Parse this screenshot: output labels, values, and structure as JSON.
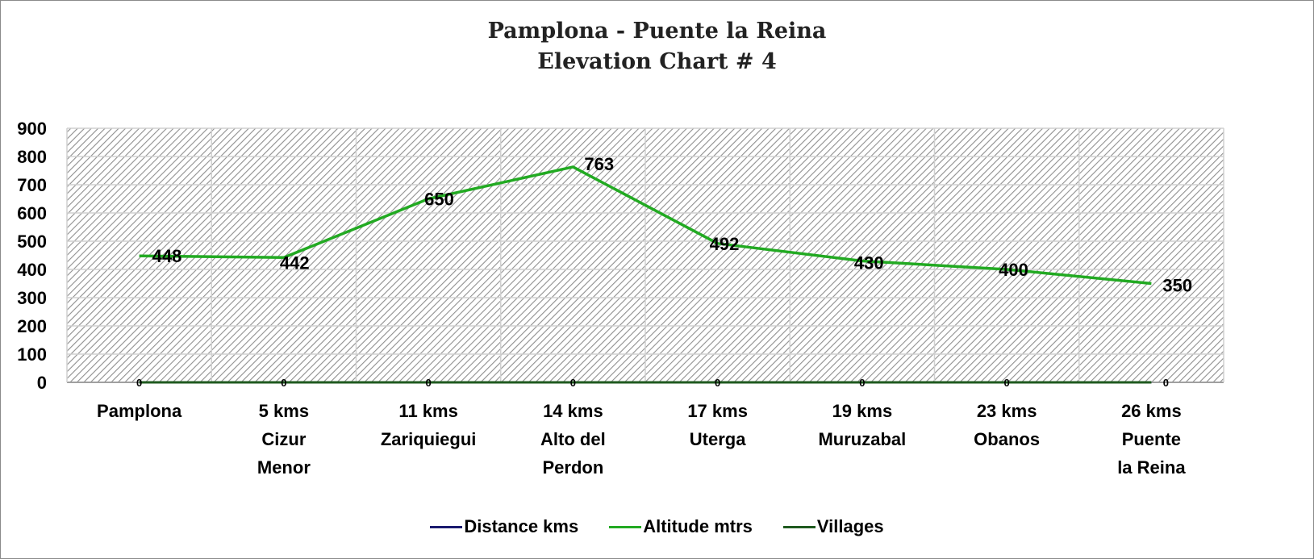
{
  "title": {
    "line1": "Pamplona - Puente la Reina",
    "line2": "Elevation Chart # 4"
  },
  "colors": {
    "distance": "#1a1a6e",
    "altitude": "#22aa22",
    "villages": "#1f5a1f",
    "grid": "#d0d0d0",
    "hatch": "#9a9a9a"
  },
  "x_labels": [
    "Pamplona",
    "5 kms\nCizur\nMenor",
    "11 kms\nZariquiegui",
    "14 kms\nAlto  del\nPerdon",
    "17 kms\nUterga",
    "19 kms\nMuruzabal",
    "23 kms\nObanos",
    "26 kms\nPuente\nla Reina"
  ],
  "legend": [
    {
      "label": "Distance kms",
      "color": "#1a1a6e"
    },
    {
      "label": "Altitude mtrs",
      "color": "#22aa22"
    },
    {
      "label": "Villages",
      "color": "#1f5a1f"
    }
  ],
  "chart_data": {
    "type": "line",
    "title": "Pamplona - Puente la Reina Elevation Chart # 4",
    "xlabel": "",
    "ylabel": "",
    "ylim": [
      0,
      900
    ],
    "yticks": [
      0,
      100,
      200,
      300,
      400,
      500,
      600,
      700,
      800,
      900
    ],
    "grid": true,
    "legend_position": "bottom",
    "categories": [
      "Pamplona",
      "5 kms Cizur Menor",
      "11 kms Zariquiegui",
      "14 kms Alto del Perdon",
      "17 kms Uterga",
      "19 kms Muruzabal",
      "23 kms Obanos",
      "26 kms Puente la Reina"
    ],
    "series": [
      {
        "name": "Distance kms",
        "values": [
          0,
          0,
          0,
          0,
          0,
          0,
          0,
          0
        ]
      },
      {
        "name": "Altitude mtrs",
        "values": [
          448,
          442,
          650,
          763,
          492,
          430,
          400,
          350
        ]
      },
      {
        "name": "Villages",
        "values": [
          0,
          0,
          0,
          0,
          0,
          0,
          0,
          0
        ]
      }
    ]
  }
}
